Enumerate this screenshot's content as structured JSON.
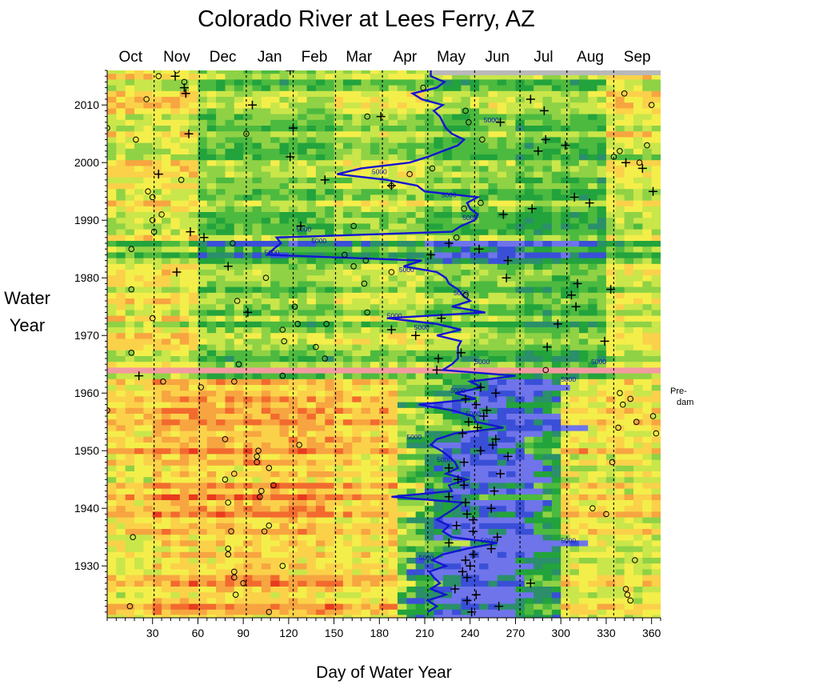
{
  "chart_data": {
    "type": "heatmap",
    "title": "Colorado River at Lees Ferry, AZ",
    "xlabel": "Day of Water Year",
    "ylabel_lines": [
      "Water",
      "Year"
    ],
    "xlim": [
      0,
      366
    ],
    "ylim": [
      1921,
      2016
    ],
    "x_ticks": [
      30,
      60,
      90,
      120,
      150,
      180,
      210,
      240,
      270,
      300,
      330,
      360
    ],
    "y_ticks": [
      1930,
      1940,
      1950,
      1960,
      1970,
      1980,
      1990,
      2000,
      2010
    ],
    "months": [
      "Oct",
      "Nov",
      "Dec",
      "Jan",
      "Feb",
      "Mar",
      "Apr",
      "May",
      "Jun",
      "Jul",
      "Aug",
      "Sep"
    ],
    "month_boundaries": [
      31,
      61,
      92,
      123,
      151,
      182,
      212,
      243,
      273,
      304,
      335
    ],
    "annotation": "Pre-\ndam",
    "contour": {
      "level_label": "5000",
      "color": "#1414d2",
      "start_day_by_year": [
        [
          1922,
          212
        ],
        [
          1923,
          218
        ],
        [
          1924,
          212
        ],
        [
          1925,
          224
        ],
        [
          1926,
          214
        ],
        [
          1927,
          220
        ],
        [
          1928,
          216
        ],
        [
          1929,
          213
        ],
        [
          1930,
          224
        ],
        [
          1931,
          215
        ],
        [
          1932,
          222
        ],
        [
          1933,
          238
        ],
        [
          1934,
          258
        ],
        [
          1935,
          228
        ],
        [
          1936,
          222
        ],
        [
          1937,
          226
        ],
        [
          1938,
          218
        ],
        [
          1939,
          224
        ],
        [
          1940,
          230
        ],
        [
          1941,
          235
        ],
        [
          1942,
          188
        ],
        [
          1943,
          228
        ],
        [
          1944,
          226
        ],
        [
          1945,
          238
        ],
        [
          1946,
          224
        ],
        [
          1947,
          232
        ],
        [
          1948,
          230
        ],
        [
          1949,
          226
        ],
        [
          1950,
          221
        ],
        [
          1951,
          214
        ],
        [
          1952,
          218
        ],
        [
          1953,
          230
        ],
        [
          1954,
          262
        ],
        [
          1955,
          244
        ],
        [
          1956,
          242
        ],
        [
          1957,
          228
        ],
        [
          1958,
          206
        ],
        [
          1959,
          244
        ],
        [
          1960,
          230
        ],
        [
          1961,
          248
        ],
        [
          1962,
          240
        ],
        [
          1963,
          270
        ],
        [
          1964,
          222
        ],
        [
          1965,
          228
        ],
        [
          1966,
          232
        ],
        [
          1967,
          232
        ],
        [
          1968,
          232
        ],
        [
          1969,
          234
        ],
        [
          1970,
          218
        ],
        [
          1971,
          234
        ],
        [
          1972,
          218
        ],
        [
          1973,
          185
        ],
        [
          1974,
          250
        ],
        [
          1975,
          228
        ],
        [
          1976,
          240
        ],
        [
          1977,
          235
        ],
        [
          1978,
          232
        ],
        [
          1979,
          226
        ],
        [
          1980,
          224
        ],
        [
          1981,
          218
        ],
        [
          1982,
          196
        ],
        [
          1983,
          208
        ],
        [
          1984,
          106
        ],
        [
          1985,
          110
        ],
        [
          1986,
          115
        ],
        [
          1987,
          112
        ],
        [
          1988,
          228
        ],
        [
          1989,
          234
        ],
        [
          1990,
          243
        ],
        [
          1991,
          245
        ],
        [
          1992,
          240
        ],
        [
          1993,
          238
        ],
        [
          1994,
          245
        ],
        [
          1995,
          210
        ],
        [
          1996,
          205
        ],
        [
          1997,
          185
        ],
        [
          1998,
          152
        ],
        [
          1999,
          168
        ],
        [
          2000,
          200
        ],
        [
          2001,
          212
        ],
        [
          2002,
          222
        ],
        [
          2003,
          232
        ],
        [
          2004,
          236
        ],
        [
          2005,
          228
        ],
        [
          2006,
          224
        ],
        [
          2007,
          222
        ],
        [
          2008,
          220
        ],
        [
          2009,
          216
        ],
        [
          2010,
          222
        ],
        [
          2011,
          208
        ],
        [
          2012,
          202
        ],
        [
          2013,
          218
        ],
        [
          2014,
          223
        ],
        [
          2015,
          214
        ],
        [
          2016,
          214
        ]
      ],
      "label_points": [
        [
          254,
          2007
        ],
        [
          180,
          1998
        ],
        [
          226,
          1994
        ],
        [
          240,
          1990
        ],
        [
          130,
          1988
        ],
        [
          140,
          1986
        ],
        [
          109,
          1984
        ],
        [
          198,
          1981
        ],
        [
          234,
          1977
        ],
        [
          190,
          1973
        ],
        [
          208,
          1971
        ],
        [
          248,
          1965
        ],
        [
          325,
          1965
        ],
        [
          305,
          1962
        ],
        [
          232,
          1960
        ],
        [
          242,
          1956
        ],
        [
          203,
          1952
        ],
        [
          223,
          1948
        ],
        [
          252,
          1934
        ],
        [
          305,
          1934
        ],
        [
          211,
          1931
        ]
      ]
    },
    "markers_plus": [
      [
        121,
        2016
      ],
      [
        45,
        2015
      ],
      [
        51,
        2013
      ],
      [
        52,
        2012
      ],
      [
        280,
        2011
      ],
      [
        96,
        2010
      ],
      [
        289,
        2009
      ],
      [
        181,
        2008
      ],
      [
        260,
        2007
      ],
      [
        123,
        2006
      ],
      [
        54,
        2005
      ],
      [
        290,
        2004
      ],
      [
        303,
        2003
      ],
      [
        285,
        2002
      ],
      [
        121,
        2001
      ],
      [
        343,
        2000
      ],
      [
        354,
        1999
      ],
      [
        144,
        1997
      ],
      [
        34,
        1998
      ],
      [
        309,
        1994
      ],
      [
        361,
        1995
      ],
      [
        188,
        1996
      ],
      [
        319,
        1993
      ],
      [
        281,
        1992
      ],
      [
        262,
        1991
      ],
      [
        128,
        1989
      ],
      [
        55,
        1988
      ],
      [
        64,
        1987
      ],
      [
        226,
        1986
      ],
      [
        246,
        1985
      ],
      [
        214,
        1984
      ],
      [
        265,
        1983
      ],
      [
        80,
        1982
      ],
      [
        46,
        1981
      ],
      [
        264,
        1980
      ],
      [
        311,
        1979
      ],
      [
        333,
        1978
      ],
      [
        307,
        1977
      ],
      [
        310,
        1975
      ],
      [
        93,
        1974
      ],
      [
        221,
        1973
      ],
      [
        298,
        1972
      ],
      [
        188,
        1971
      ],
      [
        204,
        1970
      ],
      [
        329,
        1969
      ],
      [
        291,
        1968
      ],
      [
        234,
        1967
      ],
      [
        219,
        1966
      ],
      [
        218,
        1964
      ],
      [
        21,
        1963
      ],
      [
        247,
        1961
      ],
      [
        257,
        1960
      ],
      [
        237,
        1959
      ],
      [
        244,
        1958
      ],
      [
        251,
        1957
      ],
      [
        249,
        1956
      ],
      [
        239,
        1955
      ],
      [
        245,
        1954
      ],
      [
        235,
        1953
      ],
      [
        257,
        1952
      ],
      [
        255,
        1951
      ],
      [
        247,
        1950
      ],
      [
        265,
        1949
      ],
      [
        236,
        1948
      ],
      [
        226,
        1947
      ],
      [
        260,
        1946
      ],
      [
        232,
        1945
      ],
      [
        236,
        1944
      ],
      [
        256,
        1943
      ],
      [
        226,
        1942
      ],
      [
        237,
        1941
      ],
      [
        254,
        1940
      ],
      [
        238,
        1939
      ],
      [
        242,
        1938
      ],
      [
        231,
        1937
      ],
      [
        242,
        1936
      ],
      [
        258,
        1935
      ],
      [
        226,
        1934
      ],
      [
        254,
        1933
      ],
      [
        242,
        1932
      ],
      [
        237,
        1931
      ],
      [
        240,
        1930
      ],
      [
        235,
        1929
      ],
      [
        238,
        1928
      ],
      [
        280,
        1927
      ],
      [
        230,
        1926
      ],
      [
        244,
        1925
      ],
      [
        238,
        1924
      ],
      [
        259,
        1923
      ],
      [
        241,
        1922
      ]
    ],
    "markers_circle": [
      [
        46,
        2016
      ],
      [
        34,
        2015
      ],
      [
        51,
        2014
      ],
      [
        209,
        2013
      ],
      [
        342,
        2012
      ],
      [
        26,
        2011
      ],
      [
        360,
        2010
      ],
      [
        172,
        2008
      ],
      [
        237,
        2009
      ],
      [
        239,
        2007
      ],
      [
        0,
        2006
      ],
      [
        92,
        2005
      ],
      [
        248,
        2004
      ],
      [
        19,
        2004
      ],
      [
        357,
        2003
      ],
      [
        339,
        2002
      ],
      [
        335,
        2001
      ],
      [
        352,
        2000
      ],
      [
        215,
        1999
      ],
      [
        200,
        1998
      ],
      [
        49,
        1997
      ],
      [
        188,
        1996
      ],
      [
        27,
        1995
      ],
      [
        30,
        1994
      ],
      [
        247,
        1993
      ],
      [
        236,
        1992
      ],
      [
        36,
        1991
      ],
      [
        30,
        1990
      ],
      [
        163,
        1989
      ],
      [
        31,
        1988
      ],
      [
        231,
        1987
      ],
      [
        83,
        1986
      ],
      [
        16,
        1985
      ],
      [
        157,
        1984
      ],
      [
        188,
        1981
      ],
      [
        171,
        1983
      ],
      [
        163,
        1982
      ],
      [
        105,
        1980
      ],
      [
        170,
        1979
      ],
      [
        16,
        1978
      ],
      [
        237,
        1977
      ],
      [
        86,
        1976
      ],
      [
        124,
        1975
      ],
      [
        172,
        1974
      ],
      [
        30,
        1973
      ],
      [
        126,
        1972
      ],
      [
        145,
        1972
      ],
      [
        116,
        1971
      ],
      [
        117,
        1969
      ],
      [
        138,
        1968
      ],
      [
        16,
        1967
      ],
      [
        144,
        1966
      ],
      [
        87,
        1965
      ],
      [
        290,
        1964
      ],
      [
        116,
        1963
      ],
      [
        37,
        1962
      ],
      [
        84,
        1962
      ],
      [
        62,
        1961
      ],
      [
        339,
        1960
      ],
      [
        346,
        1959
      ],
      [
        341,
        1958
      ],
      [
        0,
        1957
      ],
      [
        361,
        1956
      ],
      [
        350,
        1955
      ],
      [
        338,
        1954
      ],
      [
        363,
        1953
      ],
      [
        78,
        1952
      ],
      [
        127,
        1951
      ],
      [
        100,
        1950
      ],
      [
        99,
        1949
      ],
      [
        99,
        1948
      ],
      [
        334,
        1948
      ],
      [
        107,
        1947
      ],
      [
        84,
        1946
      ],
      [
        78,
        1945
      ],
      [
        110,
        1944
      ],
      [
        102,
        1943
      ],
      [
        101,
        1942
      ],
      [
        80,
        1941
      ],
      [
        321,
        1940
      ],
      [
        330,
        1939
      ],
      [
        107,
        1937
      ],
      [
        104,
        1936
      ],
      [
        82,
        1936
      ],
      [
        17,
        1935
      ],
      [
        80,
        1933
      ],
      [
        80,
        1932
      ],
      [
        349,
        1931
      ],
      [
        116,
        1930
      ],
      [
        84,
        1929
      ],
      [
        84,
        1928
      ],
      [
        90,
        1927
      ],
      [
        343,
        1926
      ],
      [
        85,
        1925
      ],
      [
        344,
        1925
      ],
      [
        346,
        1924
      ],
      [
        15,
        1923
      ],
      [
        107,
        1922
      ]
    ]
  }
}
